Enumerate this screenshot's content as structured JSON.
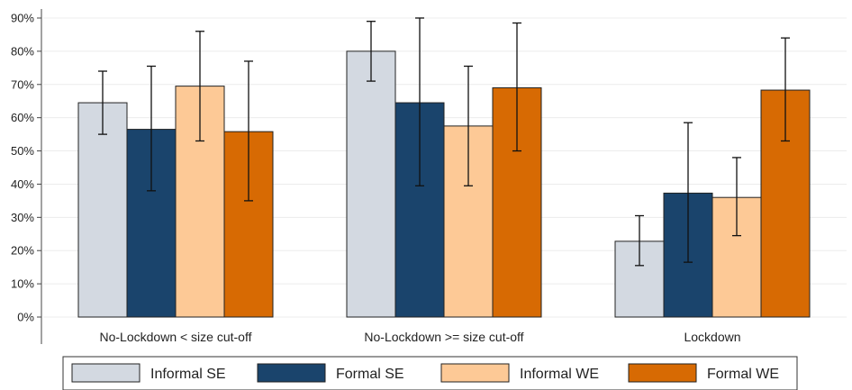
{
  "chart_data": {
    "type": "bar",
    "title": "",
    "xlabel": "",
    "ylabel": "",
    "ylim": [
      0,
      90
    ],
    "ytick_step": 10,
    "ytick_suffix": "%",
    "grid": true,
    "legend_position": "bottom",
    "categories": [
      "No-Lockdown < size cut-off",
      "No-Lockdown >= size cut-off",
      "Lockdown"
    ],
    "series": [
      {
        "name": "Informal SE",
        "color": "#d3d9e1",
        "values": [
          64.5,
          80,
          22.8
        ],
        "error_low": [
          55,
          71,
          15.5
        ],
        "error_high": [
          74,
          89,
          30.5
        ]
      },
      {
        "name": "Formal SE",
        "color": "#1a446c",
        "values": [
          56.5,
          64.5,
          37.3
        ],
        "error_low": [
          38,
          39.5,
          16.5
        ],
        "error_high": [
          75.5,
          90,
          58.5
        ]
      },
      {
        "name": "Informal WE",
        "color": "#fdc996",
        "values": [
          69.5,
          57.5,
          36
        ],
        "error_low": [
          53,
          39.5,
          24.5
        ],
        "error_high": [
          86,
          75.5,
          48
        ]
      },
      {
        "name": "Formal WE",
        "color": "#d76a03",
        "values": [
          55.8,
          69,
          68.3
        ],
        "error_low": [
          35,
          50,
          53
        ],
        "error_high": [
          77,
          88.5,
          84
        ]
      }
    ]
  }
}
